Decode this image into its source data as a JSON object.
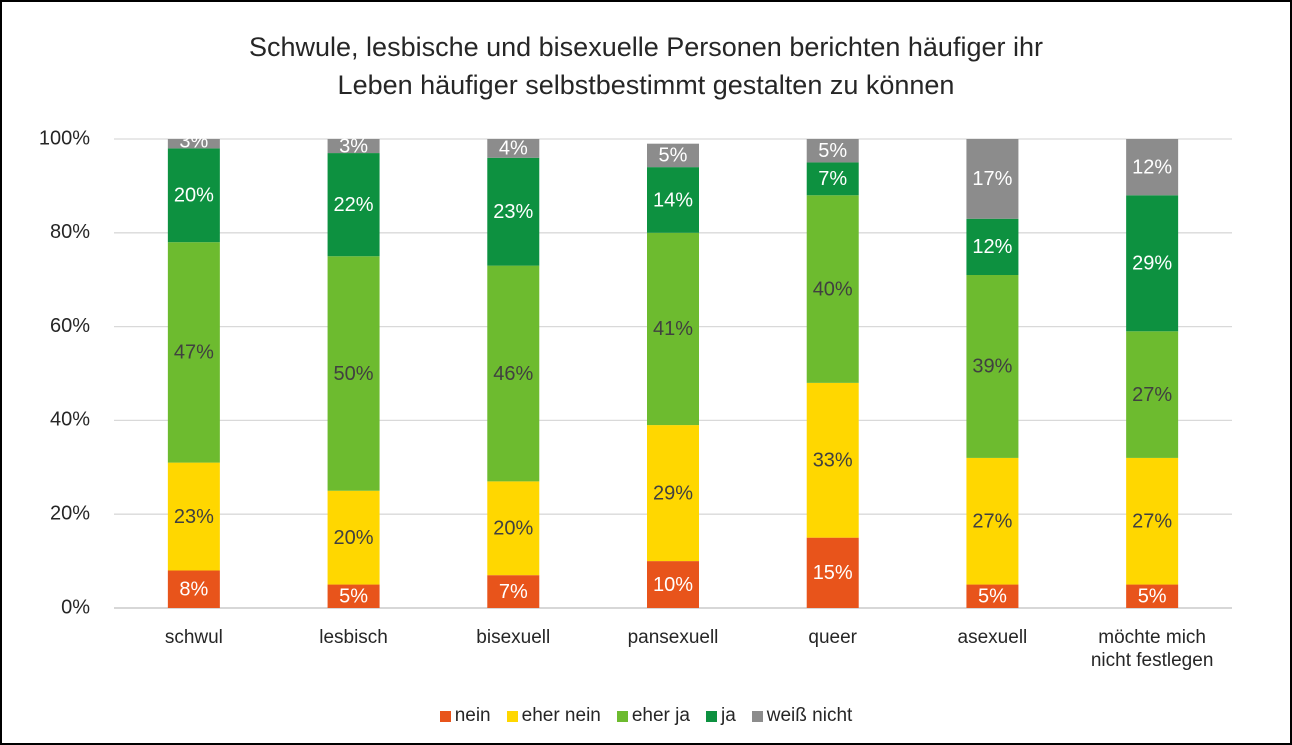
{
  "chart_data": {
    "type": "stacked_bar",
    "title": "Schwule, lesbische und bisexuelle Personen berichten häufiger ihr\nLeben häufiger selbstbestimmt gestalten zu können",
    "categories": [
      "schwul",
      "lesbisch",
      "bisexuell",
      "pansexuell",
      "queer",
      "asexuell",
      "möchte mich\nnicht festlegen"
    ],
    "series": [
      {
        "name": "nein",
        "color": "#e8541b",
        "label_color": "#ffffff",
        "values": [
          8,
          5,
          7,
          10,
          15,
          5,
          5
        ],
        "value_labels": [
          "8%",
          "5%",
          "7%",
          "10%",
          "15%",
          "5%",
          "5%"
        ]
      },
      {
        "name": "eher nein",
        "color": "#ffd700",
        "label_color": "#404040",
        "values": [
          23,
          20,
          20,
          29,
          33,
          27,
          27
        ],
        "value_labels": [
          "23%",
          "20%",
          "20%",
          "29%",
          "33%",
          "27%",
          "27%"
        ]
      },
      {
        "name": "eher ja",
        "color": "#6dbb2f",
        "label_color": "#404040",
        "values": [
          47,
          50,
          46,
          41,
          40,
          39,
          27
        ],
        "value_labels": [
          "47%",
          "50%",
          "46%",
          "41%",
          "40%",
          "39%",
          "27%"
        ]
      },
      {
        "name": "ja",
        "color": "#0d9140",
        "label_color": "#ffffff",
        "values": [
          20,
          22,
          23,
          14,
          7,
          12,
          29
        ],
        "value_labels": [
          "20%",
          "22%",
          "23%",
          "14%",
          "7%",
          "12%",
          "29%"
        ]
      },
      {
        "name": "weiß nicht",
        "color": "#8c8c8c",
        "label_color": "#ffffff",
        "values": [
          3,
          3,
          4,
          5,
          5,
          17,
          12
        ],
        "value_labels": [
          "3%",
          "3%",
          "4%",
          "5%",
          "5%",
          "17%",
          "12%"
        ]
      }
    ],
    "ylim": [
      0,
      100
    ],
    "yticks": [
      {
        "value": 0,
        "label": "0%"
      },
      {
        "value": 20,
        "label": "20%"
      },
      {
        "value": 40,
        "label": "40%"
      },
      {
        "value": 60,
        "label": "60%"
      },
      {
        "value": 80,
        "label": "80%"
      },
      {
        "value": 100,
        "label": "100%"
      }
    ],
    "grid": true,
    "legend": "bottom"
  }
}
